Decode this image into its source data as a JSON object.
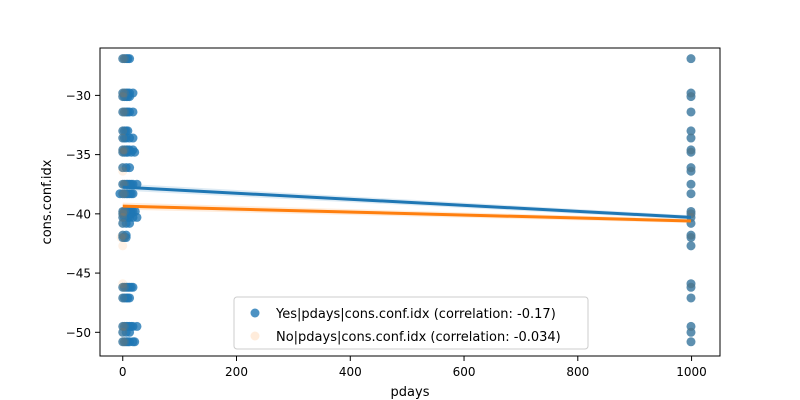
{
  "chart_data": {
    "type": "scatter",
    "title": "",
    "xlabel": "pdays",
    "ylabel": "cons.conf.idx",
    "xlim": [
      -40,
      1050
    ],
    "ylim": [
      -52,
      -26
    ],
    "xticks": [
      0,
      200,
      400,
      600,
      800,
      1000
    ],
    "yticks": [
      -50,
      -45,
      -40,
      -35,
      -30
    ],
    "legend_position": "lower-center",
    "series": [
      {
        "name": "Yes|pdays|cons.conf.idx (correlation: -0.17)",
        "color": "#1f77b4",
        "marker_alpha": 0.8,
        "points": [
          [
            0,
            -26.9
          ],
          [
            3,
            -26.9
          ],
          [
            6,
            -26.9
          ],
          [
            9,
            -26.9
          ],
          [
            12,
            -26.9
          ],
          [
            0,
            -29.8
          ],
          [
            3,
            -29.8
          ],
          [
            6,
            -29.8
          ],
          [
            9,
            -29.8
          ],
          [
            12,
            -29.8
          ],
          [
            18,
            -29.8
          ],
          [
            0,
            -30.1
          ],
          [
            3,
            -30.1
          ],
          [
            6,
            -30.1
          ],
          [
            9,
            -30.1
          ],
          [
            12,
            -30.1
          ],
          [
            0,
            -31.4
          ],
          [
            3,
            -31.4
          ],
          [
            6,
            -31.4
          ],
          [
            9,
            -31.4
          ],
          [
            12,
            -31.4
          ],
          [
            18,
            -31.4
          ],
          [
            0,
            -33.0
          ],
          [
            3,
            -33.0
          ],
          [
            6,
            -33.0
          ],
          [
            9,
            -33.0
          ],
          [
            0,
            -33.6
          ],
          [
            3,
            -33.6
          ],
          [
            6,
            -33.6
          ],
          [
            12,
            -33.6
          ],
          [
            18,
            -33.6
          ],
          [
            0,
            -34.6
          ],
          [
            3,
            -34.6
          ],
          [
            6,
            -34.6
          ],
          [
            9,
            -34.6
          ],
          [
            12,
            -34.6
          ],
          [
            18,
            -34.6
          ],
          [
            21,
            -34.8
          ],
          [
            0,
            -34.8
          ],
          [
            3,
            -34.8
          ],
          [
            6,
            -34.8
          ],
          [
            9,
            -34.8
          ],
          [
            15,
            -34.8
          ],
          [
            0,
            -36.1
          ],
          [
            6,
            -36.1
          ],
          [
            12,
            -36.1
          ],
          [
            0,
            -37.5
          ],
          [
            3,
            -37.5
          ],
          [
            6,
            -37.5
          ],
          [
            9,
            -37.5
          ],
          [
            12,
            -37.5
          ],
          [
            15,
            -37.5
          ],
          [
            18,
            -37.5
          ],
          [
            25,
            -37.5
          ],
          [
            -5,
            -38.3
          ],
          [
            0,
            -38.3
          ],
          [
            3,
            -38.3
          ],
          [
            6,
            -38.3
          ],
          [
            9,
            -38.3
          ],
          [
            12,
            -38.3
          ],
          [
            15,
            -38.3
          ],
          [
            18,
            -38.3
          ],
          [
            0,
            -39.8
          ],
          [
            3,
            -39.8
          ],
          [
            6,
            -39.8
          ],
          [
            9,
            -39.8
          ],
          [
            12,
            -39.8
          ],
          [
            15,
            -39.8
          ],
          [
            18,
            -39.8
          ],
          [
            22,
            -39.8
          ],
          [
            0,
            -40.0
          ],
          [
            3,
            -40.0
          ],
          [
            6,
            -40.0
          ],
          [
            9,
            -40.0
          ],
          [
            12,
            -40.0
          ],
          [
            15,
            -40.0
          ],
          [
            0,
            -40.3
          ],
          [
            3,
            -40.3
          ],
          [
            6,
            -40.3
          ],
          [
            9,
            -40.3
          ],
          [
            12,
            -40.3
          ],
          [
            18,
            -40.3
          ],
          [
            25,
            -40.3
          ],
          [
            0,
            -40.8
          ],
          [
            6,
            -40.8
          ],
          [
            12,
            -40.8
          ],
          [
            0,
            -41.8
          ],
          [
            6,
            -41.8
          ],
          [
            0,
            -42.0
          ],
          [
            3,
            -42.0
          ],
          [
            6,
            -42.0
          ],
          [
            0,
            -46.2
          ],
          [
            3,
            -46.2
          ],
          [
            6,
            -46.2
          ],
          [
            9,
            -46.2
          ],
          [
            12,
            -46.2
          ],
          [
            15,
            -46.2
          ],
          [
            18,
            -46.2
          ],
          [
            0,
            -47.1
          ],
          [
            3,
            -47.1
          ],
          [
            6,
            -47.1
          ],
          [
            9,
            -47.1
          ],
          [
            12,
            -47.1
          ],
          [
            0,
            -49.5
          ],
          [
            3,
            -49.5
          ],
          [
            6,
            -49.5
          ],
          [
            9,
            -49.5
          ],
          [
            12,
            -49.5
          ],
          [
            15,
            -49.5
          ],
          [
            18,
            -49.5
          ],
          [
            25,
            -49.5
          ],
          [
            0,
            -50.0
          ],
          [
            6,
            -50.0
          ],
          [
            12,
            -50.0
          ],
          [
            0,
            -50.8
          ],
          [
            3,
            -50.8
          ],
          [
            6,
            -50.8
          ],
          [
            9,
            -50.8
          ],
          [
            12,
            -50.8
          ],
          [
            18,
            -50.8
          ],
          [
            21,
            -50.8
          ],
          [
            999,
            -26.9
          ],
          [
            999,
            -29.8
          ],
          [
            999,
            -30.1
          ],
          [
            999,
            -31.4
          ],
          [
            999,
            -33.0
          ],
          [
            999,
            -33.6
          ],
          [
            999,
            -34.6
          ],
          [
            999,
            -34.8
          ],
          [
            999,
            -36.1
          ],
          [
            999,
            -36.4
          ],
          [
            999,
            -37.5
          ],
          [
            999,
            -38.3
          ],
          [
            999,
            -39.8
          ],
          [
            999,
            -40.0
          ],
          [
            999,
            -40.3
          ],
          [
            999,
            -40.8
          ],
          [
            999,
            -41.8
          ],
          [
            999,
            -42.0
          ],
          [
            999,
            -42.7
          ],
          [
            999,
            -45.9
          ],
          [
            999,
            -46.2
          ],
          [
            999,
            -47.1
          ],
          [
            999,
            -49.5
          ],
          [
            999,
            -50.0
          ],
          [
            999,
            -50.8
          ]
        ],
        "fit_line": [
          [
            0,
            -37.75
          ],
          [
            999,
            -40.3
          ]
        ]
      },
      {
        "name": "No|pdays|cons.conf.idx (correlation: -0.034)",
        "color": "#ff7f0e",
        "marker_alpha": 0.1,
        "points": [
          [
            0,
            -26.9
          ],
          [
            3,
            -26.9
          ],
          [
            0,
            -29.8
          ],
          [
            3,
            -29.8
          ],
          [
            0,
            -30.1
          ],
          [
            0,
            -31.4
          ],
          [
            3,
            -31.4
          ],
          [
            0,
            -33.0
          ],
          [
            0,
            -33.6
          ],
          [
            0,
            -34.6
          ],
          [
            3,
            -34.6
          ],
          [
            0,
            -34.8
          ],
          [
            0,
            -36.1
          ],
          [
            0,
            -36.4
          ],
          [
            0,
            -37.5
          ],
          [
            3,
            -37.5
          ],
          [
            0,
            -38.3
          ],
          [
            3,
            -38.3
          ],
          [
            0,
            -39.8
          ],
          [
            3,
            -39.8
          ],
          [
            0,
            -40.0
          ],
          [
            0,
            -40.3
          ],
          [
            0,
            -40.8
          ],
          [
            0,
            -41.8
          ],
          [
            -3,
            -42.0
          ],
          [
            3,
            -42.0
          ],
          [
            0,
            -42.7
          ],
          [
            0,
            -45.9
          ],
          [
            0,
            -46.2
          ],
          [
            3,
            -46.2
          ],
          [
            0,
            -47.1
          ],
          [
            0,
            -49.5
          ],
          [
            3,
            -49.5
          ],
          [
            0,
            -50.0
          ],
          [
            0,
            -50.8
          ],
          [
            3,
            -50.8
          ],
          [
            999,
            -26.9
          ],
          [
            999,
            -29.8
          ],
          [
            999,
            -30.1
          ],
          [
            999,
            -31.4
          ],
          [
            999,
            -33.0
          ],
          [
            999,
            -33.6
          ],
          [
            999,
            -34.6
          ],
          [
            999,
            -34.8
          ],
          [
            999,
            -36.1
          ],
          [
            999,
            -36.4
          ],
          [
            999,
            -37.5
          ],
          [
            999,
            -38.3
          ],
          [
            999,
            -39.8
          ],
          [
            999,
            -40.0
          ],
          [
            999,
            -40.3
          ],
          [
            999,
            -40.8
          ],
          [
            999,
            -41.8
          ],
          [
            999,
            -42.0
          ],
          [
            999,
            -42.7
          ],
          [
            999,
            -45.9
          ],
          [
            999,
            -46.2
          ],
          [
            999,
            -47.1
          ],
          [
            999,
            -49.5
          ],
          [
            999,
            -50.0
          ],
          [
            999,
            -50.8
          ]
        ],
        "fit_line": [
          [
            0,
            -39.35
          ],
          [
            999,
            -40.6
          ]
        ]
      }
    ]
  }
}
